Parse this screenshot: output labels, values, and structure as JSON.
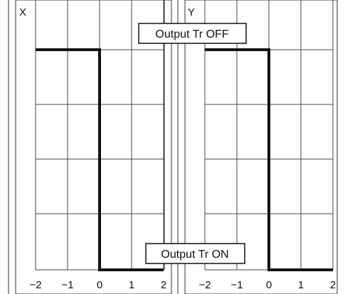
{
  "chart_data": [
    {
      "type": "line",
      "panel_label": "X",
      "xlim": [
        -2,
        2
      ],
      "x_ticks": [
        "−2",
        "−1",
        "0",
        "1",
        "2"
      ],
      "grid": true,
      "series": [
        {
          "points": [
            [
              -2,
              1
            ],
            [
              0,
              1
            ],
            [
              0,
              0
            ],
            [
              2,
              0
            ]
          ]
        }
      ]
    },
    {
      "type": "line",
      "panel_label": "Y",
      "xlim": [
        -2,
        2
      ],
      "x_ticks": [
        "−2",
        "−1",
        "0",
        "1",
        "2"
      ],
      "grid": true,
      "series": [
        {
          "points": [
            [
              -2,
              1
            ],
            [
              0,
              1
            ],
            [
              0,
              0
            ],
            [
              2,
              0
            ]
          ]
        }
      ]
    }
  ],
  "annotations": {
    "top": "Output Tr OFF",
    "bottom": "Output Tr ON"
  },
  "colors": {
    "line": "#111111",
    "grid": "#444444",
    "frame": "#333333"
  }
}
